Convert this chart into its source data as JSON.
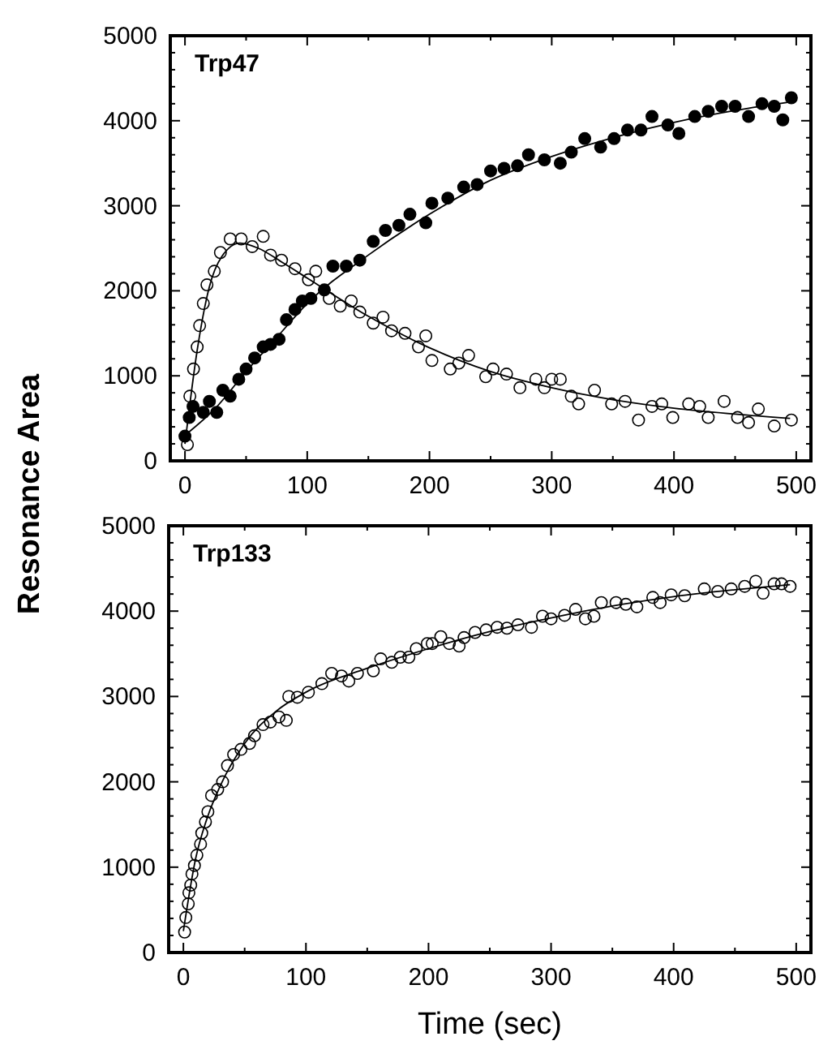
{
  "chart_data": [
    {
      "type": "scatter",
      "title": "Trp47",
      "ylabel": "Resonance Area",
      "xlim": [
        -12,
        512
      ],
      "ylim": [
        0,
        5000
      ],
      "xticks": [
        0,
        {
          "value": 50,
          "label": null
        },
        100,
        {
          "value": 150,
          "label": null
        },
        200,
        {
          "value": 250,
          "label": null
        },
        300,
        {
          "value": 350,
          "label": null
        },
        400,
        {
          "value": 450,
          "label": null
        },
        500
      ],
      "yticks": [
        0,
        {
          "value": 200,
          "label": null
        },
        {
          "value": 400,
          "label": null
        },
        {
          "value": 600,
          "label": null
        },
        {
          "value": 800,
          "label": null
        },
        1000,
        {
          "value": 1200,
          "label": null
        },
        {
          "value": 1400,
          "label": null
        },
        {
          "value": 1600,
          "label": null
        },
        {
          "value": 1800,
          "label": null
        },
        2000,
        {
          "value": 2200,
          "label": null
        },
        {
          "value": 2400,
          "label": null
        },
        {
          "value": 2600,
          "label": null
        },
        {
          "value": 2800,
          "label": null
        },
        3000,
        {
          "value": 3200,
          "label": null
        },
        {
          "value": 3400,
          "label": null
        },
        {
          "value": 3600,
          "label": null
        },
        {
          "value": 3800,
          "label": null
        },
        4000,
        {
          "value": 4200,
          "label": null
        },
        {
          "value": 4400,
          "label": null
        },
        {
          "value": 4600,
          "label": null
        },
        {
          "value": 4800,
          "label": null
        },
        5000
      ],
      "grid": false,
      "series": [
        {
          "type": "line",
          "color": "#000000",
          "line_style": "solid",
          "x": [
            0,
            25,
            50,
            75,
            100,
            150,
            200,
            250,
            300,
            350,
            400,
            450,
            500
          ],
          "values": [
            300,
            620,
            1050,
            1450,
            1850,
            2420,
            2900,
            3300,
            3580,
            3800,
            3980,
            4120,
            4230
          ]
        },
        {
          "type": "line",
          "color": "#000000",
          "line_style": "solid",
          "x": [
            0,
            10,
            20,
            30,
            45,
            60,
            80,
            100,
            150,
            200,
            250,
            300,
            350,
            400,
            450,
            495
          ],
          "values": [
            200,
            1300,
            2050,
            2400,
            2560,
            2500,
            2330,
            2150,
            1700,
            1330,
            1050,
            860,
            720,
            620,
            550,
            500
          ]
        },
        {
          "color": "#000000",
          "marker": "circle",
          "x": [
            0,
            3.5,
            6.6,
            15,
            20,
            26,
            31,
            37,
            44,
            50,
            57,
            64,
            70,
            77,
            83,
            90,
            96,
            103,
            114,
            121,
            132,
            143,
            154,
            164,
            175,
            184,
            197,
            202,
            215,
            228,
            239,
            250,
            261,
            272,
            281,
            294,
            307,
            316,
            327,
            340,
            351,
            362,
            373,
            382,
            395,
            404,
            417,
            428,
            439,
            450,
            461,
            472,
            482,
            489,
            496
          ],
          "values": [
            290,
            510,
            640,
            570,
            700,
            570,
            830,
            760,
            960,
            1080,
            1210,
            1340,
            1370,
            1430,
            1660,
            1780,
            1880,
            1910,
            2010,
            2290,
            2290,
            2360,
            2580,
            2710,
            2770,
            2900,
            2800,
            3030,
            3090,
            3220,
            3250,
            3410,
            3440,
            3470,
            3600,
            3540,
            3500,
            3630,
            3790,
            3690,
            3790,
            3890,
            3890,
            4050,
            3950,
            3850,
            4050,
            4110,
            4170,
            4170,
            4050,
            4200,
            4170,
            4010,
            4270
          ]
        },
        {
          "color": "#000000",
          "marker": "circle",
          "x": [
            2,
            4,
            7,
            10,
            12,
            15,
            18,
            24,
            29,
            37,
            46,
            55,
            64,
            70,
            79,
            90,
            101,
            107,
            118,
            127,
            136,
            143,
            154,
            162,
            169,
            180,
            191,
            197,
            202,
            217,
            224,
            232,
            246,
            252,
            263,
            274,
            287,
            294,
            300,
            307,
            316,
            322,
            335,
            349,
            360,
            371,
            382,
            390,
            399,
            412,
            421,
            428,
            441,
            452,
            461,
            469,
            482,
            496
          ],
          "values": [
            190,
            760,
            1080,
            1340,
            1590,
            1850,
            2070,
            2230,
            2450,
            2610,
            2610,
            2520,
            2640,
            2420,
            2360,
            2260,
            2130,
            2230,
            1910,
            1820,
            1880,
            1750,
            1620,
            1690,
            1530,
            1500,
            1340,
            1470,
            1180,
            1080,
            1150,
            1240,
            990,
            1080,
            1020,
            860,
            960,
            860,
            960,
            960,
            760,
            670,
            830,
            670,
            700,
            480,
            640,
            670,
            510,
            670,
            640,
            510,
            700,
            510,
            450,
            610,
            410,
            480
          ]
        }
      ]
    },
    {
      "type": "scatter",
      "title": "Trp133",
      "xlabel": "Time (sec)",
      "xlim": [
        -12,
        512
      ],
      "ylim": [
        0,
        5000
      ],
      "xticks": [
        0,
        {
          "value": 50,
          "label": null
        },
        100,
        {
          "value": 150,
          "label": null
        },
        200,
        {
          "value": 250,
          "label": null
        },
        300,
        {
          "value": 350,
          "label": null
        },
        400,
        {
          "value": 450,
          "label": null
        },
        500
      ],
      "yticks": [
        0,
        {
          "value": 200,
          "label": null
        },
        {
          "value": 400,
          "label": null
        },
        {
          "value": 600,
          "label": null
        },
        {
          "value": 800,
          "label": null
        },
        1000,
        {
          "value": 1200,
          "label": null
        },
        {
          "value": 1400,
          "label": null
        },
        {
          "value": 1600,
          "label": null
        },
        {
          "value": 1800,
          "label": null
        },
        2000,
        {
          "value": 2200,
          "label": null
        },
        {
          "value": 2400,
          "label": null
        },
        {
          "value": 2600,
          "label": null
        },
        {
          "value": 2800,
          "label": null
        },
        3000,
        {
          "value": 3200,
          "label": null
        },
        {
          "value": 3400,
          "label": null
        },
        {
          "value": 3600,
          "label": null
        },
        {
          "value": 3800,
          "label": null
        },
        4000,
        {
          "value": 4200,
          "label": null
        },
        {
          "value": 4400,
          "label": null
        },
        {
          "value": 4600,
          "label": null
        },
        {
          "value": 4800,
          "label": null
        },
        5000
      ],
      "grid": false,
      "series": [
        {
          "type": "line",
          "color": "#000000",
          "line_style": "solid",
          "x": [
            0,
            10,
            20,
            30,
            50,
            75,
            100,
            150,
            200,
            250,
            300,
            350,
            400,
            450,
            495
          ],
          "values": [
            250,
            1100,
            1600,
            1950,
            2450,
            2820,
            3050,
            3330,
            3560,
            3760,
            3920,
            4060,
            4170,
            4250,
            4310
          ]
        },
        {
          "color": "#000000",
          "marker": "circle",
          "x": [
            1,
            2,
            4,
            4.5,
            6,
            7,
            9,
            11,
            14,
            15,
            18,
            20,
            23,
            28,
            32,
            36,
            41,
            47,
            54,
            58,
            65,
            71,
            78,
            84,
            86,
            93,
            102,
            113,
            121,
            129,
            135,
            142,
            155,
            161,
            170,
            177,
            184,
            190,
            199,
            203,
            210,
            217,
            225,
            229,
            238,
            247,
            256,
            264,
            273,
            284,
            293,
            300,
            311,
            320,
            328,
            335,
            341,
            353,
            361,
            370,
            383,
            389,
            398,
            409,
            425,
            436,
            447,
            458,
            467,
            473,
            482,
            488,
            495
          ],
          "values": [
            240,
            410,
            570,
            700,
            790,
            920,
            1020,
            1140,
            1270,
            1400,
            1530,
            1650,
            1840,
            1910,
            2000,
            2190,
            2320,
            2380,
            2450,
            2540,
            2670,
            2700,
            2760,
            2720,
            3000,
            2990,
            3050,
            3150,
            3270,
            3240,
            3180,
            3270,
            3300,
            3440,
            3400,
            3460,
            3460,
            3560,
            3620,
            3620,
            3700,
            3620,
            3590,
            3690,
            3750,
            3780,
            3810,
            3800,
            3840,
            3810,
            3940,
            3910,
            3950,
            4020,
            3910,
            3940,
            4100,
            4100,
            4080,
            4050,
            4160,
            4100,
            4190,
            4180,
            4260,
            4230,
            4260,
            4290,
            4350,
            4210,
            4320,
            4320,
            4290
          ]
        }
      ]
    }
  ]
}
